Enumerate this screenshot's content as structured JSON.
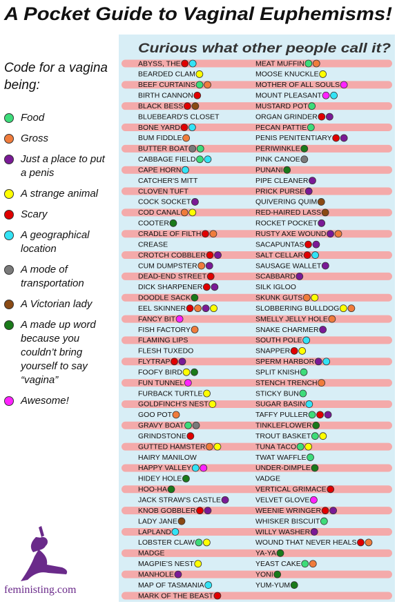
{
  "header": {
    "title": "A Pocket Guide to Vaginal Euphemisms!",
    "subtitle": "Curious what other people call it?"
  },
  "legend": {
    "heading": "Code for a vagina being:",
    "items": [
      {
        "label": "Food",
        "color": "#3ddc7a"
      },
      {
        "label": "Gross",
        "color": "#f07c3c"
      },
      {
        "label": "Just a place to put a penis",
        "color": "#7a1a96"
      },
      {
        "label": "A strange animal",
        "color": "#ffff00"
      },
      {
        "label": "Scary",
        "color": "#e00000"
      },
      {
        "label": "A geographical location",
        "color": "#33e3f5"
      },
      {
        "label": "A mode of transportation",
        "color": "#7a7a7a"
      },
      {
        "label": "A Victorian lady",
        "color": "#8a4a14"
      },
      {
        "label": "A made up word because you couldn’t bring yourself to say “vagina”",
        "color": "#1a7a1a"
      },
      {
        "label": "Awesome!",
        "color": "#ff22ff"
      }
    ]
  },
  "columns": [
    [
      {
        "name": "ABYSS, THE",
        "codes": [
          4,
          5
        ]
      },
      {
        "name": "BEARDED CLAM",
        "codes": [
          3
        ]
      },
      {
        "name": "BEEF CURTAINS",
        "codes": [
          0,
          1
        ]
      },
      {
        "name": "BIRTH CANNON",
        "codes": [
          4
        ]
      },
      {
        "name": "BLACK BESS",
        "codes": [
          4,
          7
        ]
      },
      {
        "name": "BLUEBEARD'S CLOSET",
        "codes": []
      },
      {
        "name": "BONE YARD",
        "codes": [
          4,
          5
        ]
      },
      {
        "name": "BUM FIDDLE",
        "codes": [
          1
        ]
      },
      {
        "name": "BUTTER BOAT",
        "codes": [
          6,
          0
        ]
      },
      {
        "name": "CABBAGE FIELD",
        "codes": [
          0,
          5
        ]
      },
      {
        "name": "CAPE HORN",
        "codes": [
          5
        ]
      },
      {
        "name": "CATCHER'S MITT",
        "codes": []
      },
      {
        "name": "CLOVEN TUFT",
        "codes": []
      },
      {
        "name": "COCK SOCKET",
        "codes": [
          2
        ]
      },
      {
        "name": "COD CANAL",
        "codes": [
          1,
          3
        ]
      },
      {
        "name": "COOTER",
        "codes": [
          8
        ]
      },
      {
        "name": "CRADLE OF FILTH",
        "codes": [
          4,
          1
        ]
      },
      {
        "name": "CREASE",
        "codes": []
      },
      {
        "name": "CROTCH COBBLER",
        "codes": [
          4,
          2
        ]
      },
      {
        "name": "CUM DUMPSTER",
        "codes": [
          1,
          2
        ]
      },
      {
        "name": "DEAD-END STREET",
        "codes": [
          4
        ]
      },
      {
        "name": "DICK SHARPENER",
        "codes": [
          4,
          2
        ]
      },
      {
        "name": "DOODLE SACK",
        "codes": [
          8
        ]
      },
      {
        "name": "EEL SKINNER",
        "codes": [
          4,
          1,
          2,
          3
        ]
      },
      {
        "name": "FANCY BIT",
        "codes": [
          9
        ]
      },
      {
        "name": "FISH FACTORY",
        "codes": [
          1
        ]
      },
      {
        "name": "FLAMING LIPS",
        "codes": []
      },
      {
        "name": "FLESH TUXEDO",
        "codes": []
      },
      {
        "name": "FLYTRAP",
        "codes": [
          4,
          2
        ]
      },
      {
        "name": "FOOFY BIRD",
        "codes": [
          3,
          8
        ]
      },
      {
        "name": "FUN TUNNEL",
        "codes": [
          9
        ]
      },
      {
        "name": "FURBACK TURTLE",
        "codes": [
          3
        ]
      },
      {
        "name": "GOLDFINCH'S NEST",
        "codes": [
          3
        ]
      },
      {
        "name": "GOO POT",
        "codes": [
          1
        ]
      },
      {
        "name": "GRAVY BOAT",
        "codes": [
          0,
          6
        ]
      },
      {
        "name": "GRINDSTONE",
        "codes": [
          4
        ]
      },
      {
        "name": "GUTTED HAMSTER",
        "codes": [
          1,
          3
        ]
      },
      {
        "name": "HAIRY MANILOW",
        "codes": []
      },
      {
        "name": "HAPPY VALLEY",
        "codes": [
          5,
          9
        ]
      },
      {
        "name": "HIDEY HOLE",
        "codes": [
          8
        ]
      },
      {
        "name": "HOO-HA",
        "codes": [
          8
        ]
      },
      {
        "name": "JACK STRAW'S CASTLE",
        "codes": [
          2
        ]
      },
      {
        "name": "KNOB GOBBLER",
        "codes": [
          4,
          2
        ]
      },
      {
        "name": "LADY JANE",
        "codes": [
          7
        ]
      },
      {
        "name": "LAPLAND",
        "codes": [
          5
        ]
      },
      {
        "name": "LOBSTER CLAW",
        "codes": [
          0,
          3
        ]
      },
      {
        "name": "MADGE",
        "codes": []
      },
      {
        "name": "MAGPIE'S NEST",
        "codes": [
          3
        ]
      },
      {
        "name": "MANHOLE",
        "codes": [
          2
        ]
      },
      {
        "name": "MAP OF TASMANIA",
        "codes": [
          5
        ]
      },
      {
        "name": "MARK OF THE BEAST",
        "codes": [
          4
        ]
      }
    ],
    [
      {
        "name": "MEAT MUFFIN",
        "codes": [
          0,
          1
        ]
      },
      {
        "name": "MOOSE KNUCKLE",
        "codes": [
          3
        ]
      },
      {
        "name": "MOTHER OF ALL SOULS",
        "codes": [
          9
        ]
      },
      {
        "name": "MOUNT PLEASANT",
        "codes": [
          9,
          5
        ]
      },
      {
        "name": "MUSTARD POT",
        "codes": [
          0
        ]
      },
      {
        "name": "ORGAN GRINDER",
        "codes": [
          4,
          2
        ]
      },
      {
        "name": "PECAN PATTIE",
        "codes": [
          0
        ]
      },
      {
        "name": "PENIS PENITENTIARY",
        "codes": [
          4,
          2
        ]
      },
      {
        "name": "PERIWINKLE",
        "codes": [
          8
        ]
      },
      {
        "name": "PINK CANOE",
        "codes": [
          6
        ]
      },
      {
        "name": "PUNANI",
        "codes": [
          8
        ]
      },
      {
        "name": "PIPE CLEANER",
        "codes": [
          2
        ]
      },
      {
        "name": "PRICK PURSE",
        "codes": [
          2
        ]
      },
      {
        "name": "QUIVERING QUIM",
        "codes": [
          7
        ]
      },
      {
        "name": "RED-HAIRED LASS",
        "codes": [
          7
        ]
      },
      {
        "name": "ROCKET POCKET",
        "codes": [
          2
        ]
      },
      {
        "name": "RUSTY AXE WOUND",
        "codes": [
          2,
          1
        ]
      },
      {
        "name": "SACAPUNTAS",
        "codes": [
          4,
          2
        ]
      },
      {
        "name": "SALT CELLAR",
        "codes": [
          4,
          5
        ]
      },
      {
        "name": "SAUSAGE WALLET",
        "codes": [
          2
        ]
      },
      {
        "name": "SCABBARD",
        "codes": [
          2
        ]
      },
      {
        "name": "SILK IGLOO",
        "codes": []
      },
      {
        "name": "SKUNK GUTS",
        "codes": [
          1,
          3
        ]
      },
      {
        "name": "SLOBBERING BULLDOG",
        "codes": [
          3,
          1
        ]
      },
      {
        "name": "SMELLY JELLY HOLE",
        "codes": [
          1
        ]
      },
      {
        "name": "SNAKE CHARMER",
        "codes": [
          2
        ]
      },
      {
        "name": "SOUTH POLE",
        "codes": [
          5
        ]
      },
      {
        "name": "SNAPPER",
        "codes": [
          4,
          3
        ]
      },
      {
        "name": "SPERM HARBOR",
        "codes": [
          2,
          5
        ]
      },
      {
        "name": "SPLIT KNISH",
        "codes": [
          0
        ]
      },
      {
        "name": "STENCH TRENCH",
        "codes": [
          1
        ]
      },
      {
        "name": "STICKY BUN",
        "codes": [
          0
        ]
      },
      {
        "name": "SUGAR BASIN",
        "codes": [
          5
        ]
      },
      {
        "name": "TAFFY PULLER",
        "codes": [
          0,
          4,
          2
        ]
      },
      {
        "name": "TINKLEFLOWER",
        "codes": [
          8
        ]
      },
      {
        "name": "TROUT BASKET",
        "codes": [
          0,
          3
        ]
      },
      {
        "name": "TUNA TACO",
        "codes": [
          0,
          3
        ]
      },
      {
        "name": "TWAT WAFFLE",
        "codes": [
          0
        ]
      },
      {
        "name": "UNDER-DIMPLE",
        "codes": [
          8
        ]
      },
      {
        "name": "VADGE",
        "codes": []
      },
      {
        "name": "VERTICAL GRIMACE",
        "codes": [
          4
        ]
      },
      {
        "name": "VELVET GLOVE",
        "codes": [
          9
        ]
      },
      {
        "name": "WEENIE WRINGER",
        "codes": [
          4,
          2
        ]
      },
      {
        "name": "WHISKER BISCUIT",
        "codes": [
          0
        ]
      },
      {
        "name": "WILLY WASHER",
        "codes": [
          2
        ]
      },
      {
        "name": "WOUND THAT NEVER HEALS",
        "codes": [
          4,
          1
        ]
      },
      {
        "name": "YA-YA",
        "codes": [
          8
        ]
      },
      {
        "name": "YEAST CAKE",
        "codes": [
          0,
          1
        ]
      },
      {
        "name": "YONI",
        "codes": [
          8
        ]
      },
      {
        "name": "YUM-YUM",
        "codes": [
          8
        ]
      }
    ]
  ],
  "footer": {
    "credit": "feministing.com"
  }
}
